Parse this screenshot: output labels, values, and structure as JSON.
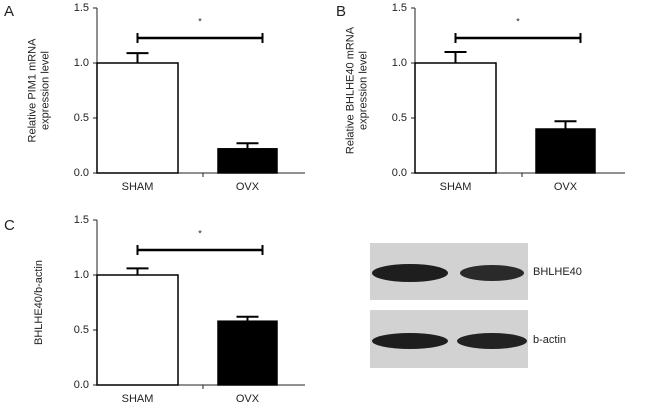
{
  "chart_data": [
    {
      "type": "bar",
      "panel": "A",
      "y_label": [
        "Relative PIM1 mRNA",
        "expression level"
      ],
      "categories": [
        "SHAM",
        "OVX"
      ],
      "values": [
        1.0,
        0.22
      ],
      "errors": [
        0.09,
        0.05
      ],
      "colors": [
        "#ffffff",
        "#000000"
      ],
      "ylim": [
        0,
        1.5
      ],
      "yticks": [
        {
          "value": 0,
          "label": "0.0"
        },
        0.5,
        {
          "value": 1,
          "label": "1.0"
        },
        1.5
      ],
      "annotation": "*"
    },
    {
      "type": "bar",
      "panel": "B",
      "y_label": [
        "Relative BHLHE40 mRNA",
        "expression level"
      ],
      "categories": [
        "SHAM",
        "OVX"
      ],
      "values": [
        1.0,
        0.4
      ],
      "errors": [
        0.1,
        0.07
      ],
      "colors": [
        "#ffffff",
        "#000000"
      ],
      "ylim": [
        0,
        1.5
      ],
      "yticks": [
        {
          "value": 0,
          "label": "0.0"
        },
        0.5,
        {
          "value": 1,
          "label": "1.0"
        },
        1.5
      ],
      "annotation": "*"
    },
    {
      "type": "bar",
      "panel": "C",
      "y_label": [
        "BHLHE40/b-actin"
      ],
      "categories": [
        "SHAM",
        "OVX"
      ],
      "values": [
        1.0,
        0.58
      ],
      "errors": [
        0.06,
        0.04
      ],
      "colors": [
        "#ffffff",
        "#000000"
      ],
      "ylim": [
        0,
        1.5
      ],
      "yticks": [
        {
          "value": 0,
          "label": "0.0"
        },
        0.5,
        {
          "value": 1,
          "label": "1.0"
        },
        1.5
      ],
      "annotation": "*"
    }
  ],
  "blot": {
    "labels": [
      "BHLHE40",
      "b-actin"
    ]
  }
}
